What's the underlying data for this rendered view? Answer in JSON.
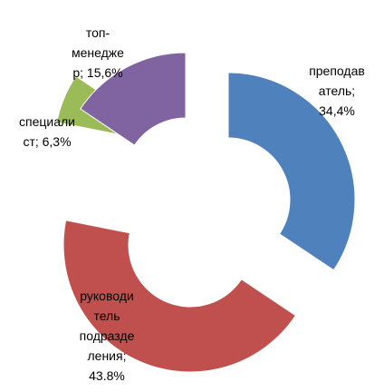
{
  "chart_data": {
    "type": "doughnut",
    "values": [
      34.4,
      43.8,
      6.3,
      15.6
    ],
    "value_labels": [
      "преподаватель; 34,4%",
      "руководитель подразделения; 43.8%",
      "специалист; 6,3%",
      "топ-менеджер; 15,6%"
    ],
    "colors": [
      "#4f81bd",
      "#c0504d",
      "#9bbb59",
      "#8064a2"
    ]
  }
}
